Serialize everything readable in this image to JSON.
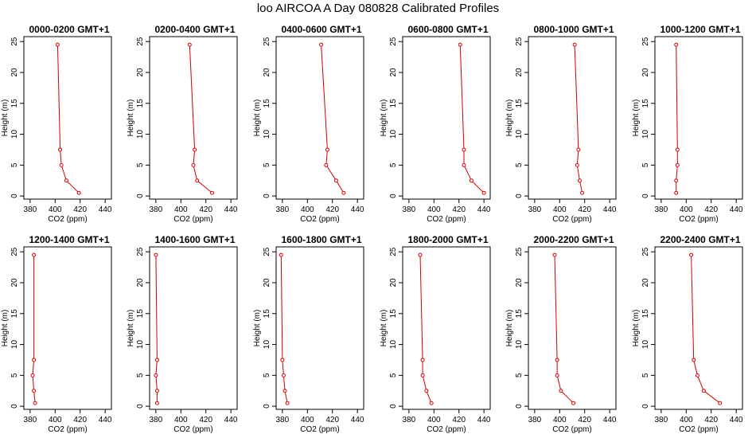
{
  "figure": {
    "title": "loo AIRCOA A  Day 080828  Calibrated Profiles",
    "colors": {
      "profile": "#d40000",
      "axis": "#000000"
    }
  },
  "chart_data": [
    {
      "type": "line",
      "title": "0000-0200 GMT+1",
      "xlabel": "CO2 (ppm)",
      "ylabel": "Height (m)",
      "x_ticks": [
        380,
        400,
        420,
        440
      ],
      "y_ticks": [
        0,
        5,
        10,
        15,
        20,
        25
      ],
      "xlim": [
        375,
        445
      ],
      "ylim": [
        -0.5,
        25.8
      ],
      "series": [
        {
          "x": [
            419,
            409,
            405,
            404,
            402
          ],
          "y": [
            0.5,
            2.5,
            5,
            7.5,
            24.5
          ]
        }
      ]
    },
    {
      "type": "line",
      "title": "0200-0400 GMT+1",
      "xlabel": "CO2 (ppm)",
      "ylabel": "Height (m)",
      "x_ticks": [
        380,
        400,
        420,
        440
      ],
      "y_ticks": [
        0,
        5,
        10,
        15,
        20,
        25
      ],
      "xlim": [
        375,
        445
      ],
      "ylim": [
        -0.5,
        25.8
      ],
      "series": [
        {
          "x": [
            425,
            413,
            410,
            411,
            407
          ],
          "y": [
            0.5,
            2.5,
            5,
            7.5,
            24.5
          ]
        }
      ]
    },
    {
      "type": "line",
      "title": "0400-0600 GMT+1",
      "xlabel": "CO2 (ppm)",
      "ylabel": "Height (m)",
      "x_ticks": [
        380,
        400,
        420,
        440
      ],
      "y_ticks": [
        0,
        5,
        10,
        15,
        20,
        25
      ],
      "xlim": [
        375,
        445
      ],
      "ylim": [
        -0.5,
        25.8
      ],
      "series": [
        {
          "x": [
            429,
            423,
            415,
            416,
            411
          ],
          "y": [
            0.5,
            2.5,
            5,
            7.5,
            24.5
          ]
        }
      ]
    },
    {
      "type": "line",
      "title": "0600-0800 GMT+1",
      "xlabel": "CO2 (ppm)",
      "ylabel": "Height (m)",
      "x_ticks": [
        380,
        400,
        420,
        440
      ],
      "y_ticks": [
        0,
        5,
        10,
        15,
        20,
        25
      ],
      "xlim": [
        375,
        445
      ],
      "ylim": [
        -0.5,
        25.8
      ],
      "series": [
        {
          "x": [
            440,
            430,
            424,
            424,
            421
          ],
          "y": [
            0.5,
            2.5,
            5,
            7.5,
            24.5
          ]
        }
      ]
    },
    {
      "type": "line",
      "title": "0800-1000 GMT+1",
      "xlabel": "CO2 (ppm)",
      "ylabel": "Height (m)",
      "x_ticks": [
        380,
        400,
        420,
        440
      ],
      "y_ticks": [
        0,
        5,
        10,
        15,
        20,
        25
      ],
      "xlim": [
        375,
        445
      ],
      "ylim": [
        -0.5,
        25.8
      ],
      "series": [
        {
          "x": [
            418,
            416,
            414,
            415,
            412
          ],
          "y": [
            0.5,
            2.5,
            5,
            7.5,
            24.5
          ]
        }
      ]
    },
    {
      "type": "line",
      "title": "1000-1200 GMT+1",
      "xlabel": "CO2 (ppm)",
      "ylabel": "Height (m)",
      "x_ticks": [
        380,
        400,
        420,
        440
      ],
      "y_ticks": [
        0,
        5,
        10,
        15,
        20,
        25
      ],
      "xlim": [
        375,
        445
      ],
      "ylim": [
        -0.5,
        25.8
      ],
      "series": [
        {
          "x": [
            392,
            392,
            393,
            393,
            392
          ],
          "y": [
            0.5,
            2.5,
            5,
            7.5,
            24.5
          ]
        }
      ]
    },
    {
      "type": "line",
      "title": "1200-1400 GMT+1",
      "xlabel": "CO2 (ppm)",
      "ylabel": "Height (m)",
      "x_ticks": [
        380,
        400,
        420,
        440
      ],
      "y_ticks": [
        0,
        5,
        10,
        15,
        20,
        25
      ],
      "xlim": [
        375,
        445
      ],
      "ylim": [
        -0.5,
        25.8
      ],
      "series": [
        {
          "x": [
            384,
            383,
            382,
            383,
            383
          ],
          "y": [
            0.5,
            2.5,
            5,
            7.5,
            24.5
          ]
        }
      ]
    },
    {
      "type": "line",
      "title": "1400-1600 GMT+1",
      "xlabel": "CO2 (ppm)",
      "ylabel": "Height (m)",
      "x_ticks": [
        380,
        400,
        420,
        440
      ],
      "y_ticks": [
        0,
        5,
        10,
        15,
        20,
        25
      ],
      "xlim": [
        375,
        445
      ],
      "ylim": [
        -0.5,
        25.8
      ],
      "series": [
        {
          "x": [
            381,
            381,
            380,
            381,
            380
          ],
          "y": [
            0.5,
            2.5,
            5,
            7.5,
            24.5
          ]
        }
      ]
    },
    {
      "type": "line",
      "title": "1600-1800 GMT+1",
      "xlabel": "CO2 (ppm)",
      "ylabel": "Height (m)",
      "x_ticks": [
        380,
        400,
        420,
        440
      ],
      "y_ticks": [
        0,
        5,
        10,
        15,
        20,
        25
      ],
      "xlim": [
        375,
        445
      ],
      "ylim": [
        -0.5,
        25.8
      ],
      "series": [
        {
          "x": [
            384,
            382,
            381,
            380,
            379
          ],
          "y": [
            0.5,
            2.5,
            5,
            7.5,
            24.5
          ]
        }
      ]
    },
    {
      "type": "line",
      "title": "1800-2000 GMT+1",
      "xlabel": "CO2 (ppm)",
      "ylabel": "Height (m)",
      "x_ticks": [
        380,
        400,
        420,
        440
      ],
      "y_ticks": [
        0,
        5,
        10,
        15,
        20,
        25
      ],
      "xlim": [
        375,
        445
      ],
      "ylim": [
        -0.5,
        25.8
      ],
      "series": [
        {
          "x": [
            398,
            394,
            391,
            391,
            389
          ],
          "y": [
            0.5,
            2.5,
            5,
            7.5,
            24.5
          ]
        }
      ]
    },
    {
      "type": "line",
      "title": "2000-2200 GMT+1",
      "xlabel": "CO2 (ppm)",
      "ylabel": "Height (m)",
      "x_ticks": [
        380,
        400,
        420,
        440
      ],
      "y_ticks": [
        0,
        5,
        10,
        15,
        20,
        25
      ],
      "xlim": [
        375,
        445
      ],
      "ylim": [
        -0.5,
        25.8
      ],
      "series": [
        {
          "x": [
            411,
            401,
            398,
            398,
            396
          ],
          "y": [
            0.5,
            2.5,
            5,
            7.5,
            24.5
          ]
        }
      ]
    },
    {
      "type": "line",
      "title": "2200-2400 GMT+1",
      "xlabel": "CO2 (ppm)",
      "ylabel": "Height (m)",
      "x_ticks": [
        380,
        400,
        420,
        440
      ],
      "y_ticks": [
        0,
        5,
        10,
        15,
        20,
        25
      ],
      "xlim": [
        375,
        445
      ],
      "ylim": [
        -0.5,
        25.8
      ],
      "series": [
        {
          "x": [
            427,
            414,
            409,
            406,
            404
          ],
          "y": [
            0.5,
            2.5,
            5,
            7.5,
            24.5
          ]
        }
      ]
    }
  ]
}
